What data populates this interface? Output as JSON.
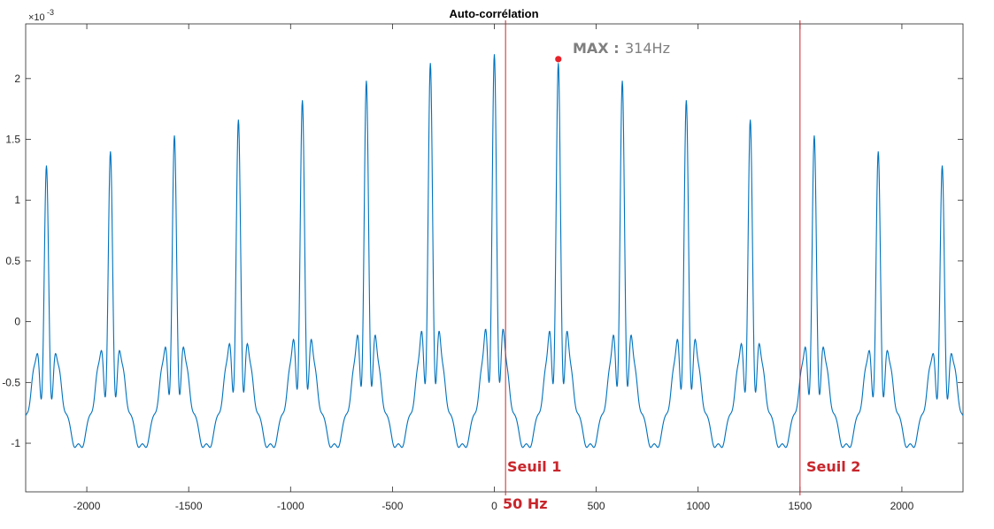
{
  "chart_data": {
    "type": "line",
    "title": "Auto-corrélation",
    "xlim": [
      -2300,
      2300
    ],
    "ylim": [
      -0.0014,
      0.00245
    ],
    "x_ticks": [
      -2000,
      -1500,
      -1000,
      -500,
      0,
      500,
      1000,
      1500,
      2000
    ],
    "x_tick_labels": [
      "-2000",
      "-1500",
      "-1000",
      "-500",
      "0",
      "500",
      "1000",
      "1500",
      "2000"
    ],
    "y_ticks": [
      -0.001,
      -0.0005,
      0,
      0.0005,
      0.001,
      0.0015,
      0.002
    ],
    "y_tick_labels": [
      "-1",
      "-0.5",
      "0",
      "0.5",
      "1",
      "1.5",
      "2"
    ],
    "y_exponent_label": "×10",
    "y_exponent_power": "-3",
    "series": [
      {
        "color": "#0072bd",
        "period": 314,
        "peaks": [
          {
            "x": 0,
            "y": 0.0022
          },
          {
            "x": 314,
            "y": 0.00215
          },
          {
            "x": 628,
            "y": 0.00205
          },
          {
            "x": 942,
            "y": 0.00194
          },
          {
            "x": 1256,
            "y": 0.00183
          },
          {
            "x": 1570,
            "y": 0.00174
          },
          {
            "x": 1884,
            "y": 0.00165
          },
          {
            "x": 2198,
            "y": 0.00157
          }
        ],
        "troughs_y": -0.001
      }
    ],
    "vertical_lines": [
      {
        "x": 55,
        "color": "#c8262c"
      },
      {
        "x": 1500,
        "color": "#c8262c"
      }
    ],
    "max_marker": {
      "x": 314,
      "y": 0.00216,
      "color": "#e8222a"
    },
    "annotations": {
      "max_label": "MAX :",
      "max_value": "314Hz",
      "seuil1": "Seuil 1",
      "seuil2": "Seuil 2",
      "freq50": "50 Hz"
    }
  }
}
